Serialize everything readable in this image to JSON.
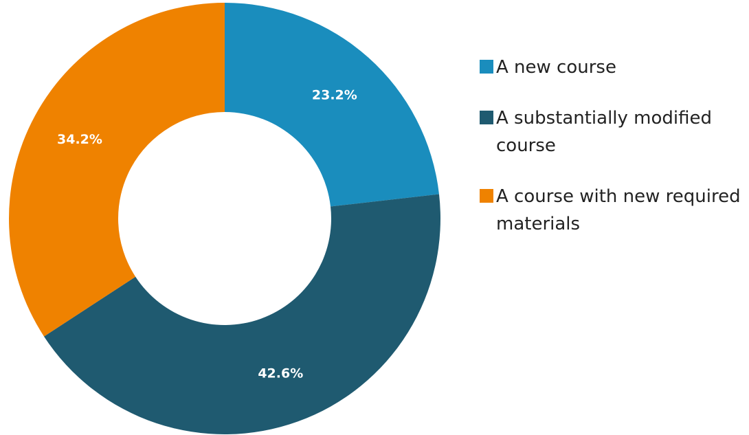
{
  "chart_data": {
    "type": "donut",
    "categories": [
      "A new course",
      "A substantially modified course",
      "A course with new required materials"
    ],
    "values": [
      23.2,
      42.6,
      34.2
    ],
    "value_labels": [
      "23.2%",
      "42.6%",
      "34.2%"
    ],
    "colors": [
      "#1a8dbd",
      "#1f5a70",
      "#ef8200"
    ],
    "legend": "right"
  }
}
